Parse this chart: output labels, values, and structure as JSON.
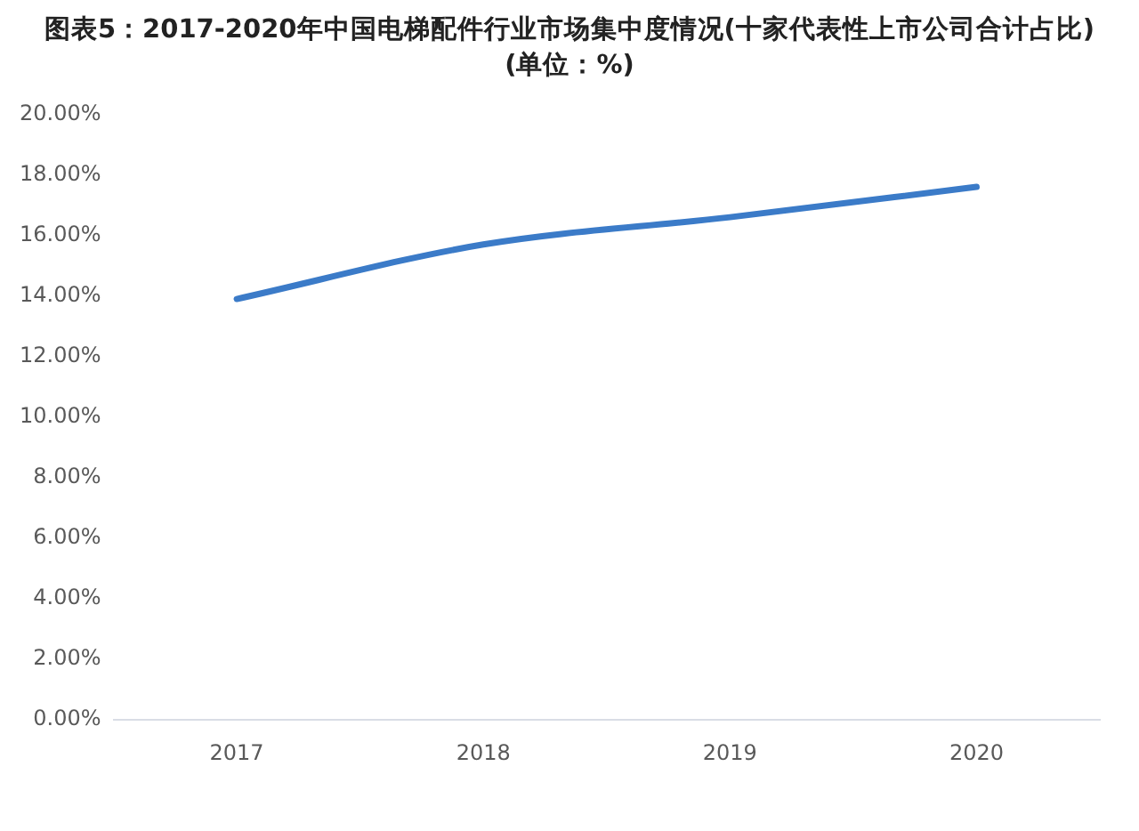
{
  "chart_data": {
    "type": "line",
    "title": "图表5：2017-2020年中国电梯配件行业市场集中度情况(十家代表性上市公司合计占比)(单位：%)",
    "categories": [
      "2017",
      "2018",
      "2019",
      "2020"
    ],
    "series": [
      {
        "color": "#3b7bc8",
        "values": [
          13.9,
          15.7,
          16.6,
          17.6
        ]
      }
    ],
    "ylim": [
      0,
      20
    ],
    "yticks": [
      {
        "value": 0,
        "label": "0.00%"
      },
      {
        "value": 2,
        "label": "2.00%"
      },
      {
        "value": 4,
        "label": "4.00%"
      },
      {
        "value": 6,
        "label": "6.00%"
      },
      {
        "value": 8,
        "label": "8.00%"
      },
      {
        "value": 10,
        "label": "10.00%"
      },
      {
        "value": 12,
        "label": "12.00%"
      },
      {
        "value": 14,
        "label": "14.00%"
      },
      {
        "value": 16,
        "label": "16.00%"
      },
      {
        "value": 18,
        "label": "18.00%"
      },
      {
        "value": 20,
        "label": "20.00%"
      }
    ],
    "grid": false,
    "legend": false,
    "marker": "none",
    "line_style": "solid"
  }
}
